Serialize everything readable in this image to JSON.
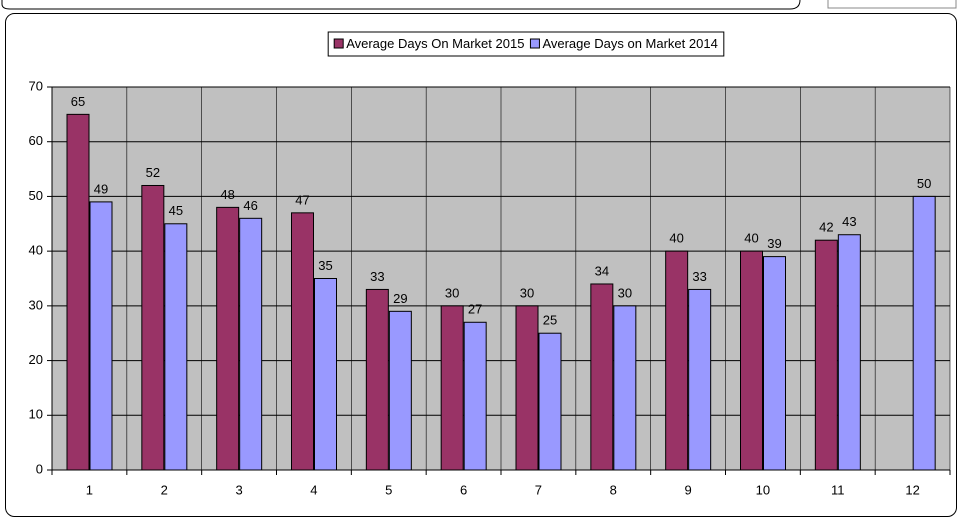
{
  "chart_data": {
    "type": "bar",
    "categories": [
      "1",
      "2",
      "3",
      "4",
      "5",
      "6",
      "7",
      "8",
      "9",
      "10",
      "11",
      "12"
    ],
    "series": [
      {
        "name": "Average Days On Market 2015",
        "color": "#993366",
        "values": [
          65,
          52,
          48,
          47,
          33,
          30,
          30,
          34,
          40,
          40,
          42,
          null
        ]
      },
      {
        "name": "Average Days on Market 2014",
        "color": "#9999ff",
        "values": [
          49,
          45,
          46,
          35,
          29,
          27,
          25,
          30,
          33,
          39,
          43,
          50
        ]
      }
    ],
    "ylim": [
      0,
      70
    ],
    "yticks": [
      0,
      10,
      20,
      30,
      40,
      50,
      60,
      70
    ],
    "grid": true,
    "plot_background": "#c0c0c0",
    "legend": "top"
  }
}
